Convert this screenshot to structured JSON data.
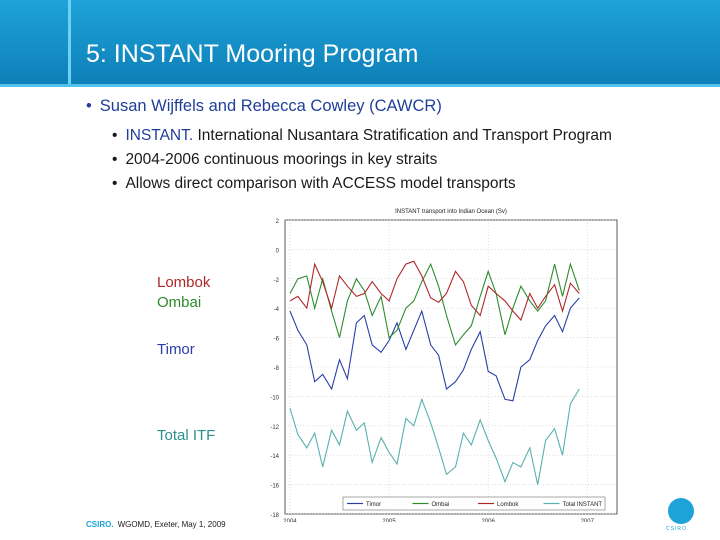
{
  "slide": {
    "title": "5: INSTANT Mooring Program",
    "bullet_main": "Susan Wijffels and Rebecca Cowley (CAWCR)",
    "sub_bullets": [
      {
        "highlight": "INSTANT.",
        "text": " International Nusantara Stratification and Transport Program"
      },
      {
        "highlight": "",
        "text": "2004-2006 continuous moorings in key straits"
      },
      {
        "highlight": "",
        "text": "Allows direct comparison with ACCESS model transports"
      }
    ],
    "side_labels": {
      "lombok": "Lombok",
      "ombai": "Ombai",
      "timor": "Timor",
      "total": "Total ITF"
    },
    "footer": {
      "brand": "CSIRO.",
      "text": "WGOMD, Exeter, May 1, 2009"
    },
    "logo_text": "CSIRO"
  },
  "chart_data": {
    "type": "line",
    "title": "INSTANT transport into Indian Ocean (Sv)",
    "xlabel": "",
    "ylabel": "",
    "xlim": [
      2003.95,
      2007.3
    ],
    "ylim": [
      -18,
      2
    ],
    "x_ticks": [
      2004,
      2005,
      2006,
      2007
    ],
    "y_ticks": [
      2,
      0,
      -2,
      -4,
      -6,
      -8,
      -10,
      -12,
      -14,
      -16,
      -18
    ],
    "grid": true,
    "legend_position": "bottom",
    "series": [
      {
        "name": "Timor",
        "color": "#2a3fa8",
        "x": [
          2004.0,
          2004.08,
          2004.17,
          2004.25,
          2004.33,
          2004.42,
          2004.5,
          2004.58,
          2004.67,
          2004.75,
          2004.83,
          2004.92,
          2005.0,
          2005.08,
          2005.17,
          2005.25,
          2005.33,
          2005.42,
          2005.5,
          2005.58,
          2005.67,
          2005.75,
          2005.83,
          2005.92,
          2006.0,
          2006.08,
          2006.17,
          2006.25,
          2006.33,
          2006.42,
          2006.5,
          2006.58,
          2006.67,
          2006.75,
          2006.83,
          2006.92
        ],
        "values": [
          -4.2,
          -5.5,
          -6.5,
          -9.0,
          -8.5,
          -9.5,
          -7.5,
          -8.8,
          -5.0,
          -4.5,
          -6.5,
          -7.0,
          -6.2,
          -5.0,
          -6.8,
          -5.5,
          -4.2,
          -6.5,
          -7.2,
          -9.5,
          -9.0,
          -8.2,
          -6.8,
          -5.6,
          -8.3,
          -8.6,
          -10.2,
          -10.3,
          -8.0,
          -7.5,
          -6.2,
          -5.2,
          -4.5,
          -5.6,
          -4.0,
          -3.3
        ]
      },
      {
        "name": "Ombai",
        "color": "#2e8b2e",
        "x": [
          2004.0,
          2004.08,
          2004.17,
          2004.25,
          2004.33,
          2004.42,
          2004.5,
          2004.58,
          2004.67,
          2004.75,
          2004.83,
          2004.92,
          2005.0,
          2005.08,
          2005.17,
          2005.25,
          2005.33,
          2005.42,
          2005.5,
          2005.58,
          2005.67,
          2005.75,
          2005.83,
          2005.92,
          2006.0,
          2006.08,
          2006.17,
          2006.25,
          2006.33,
          2006.42,
          2006.5,
          2006.58,
          2006.67,
          2006.75,
          2006.83,
          2006.92
        ],
        "values": [
          -3.0,
          -2.0,
          -1.8,
          -4.0,
          -2.0,
          -4.2,
          -6.0,
          -3.5,
          -2.0,
          -2.8,
          -4.5,
          -3.2,
          -6.0,
          -5.5,
          -4.0,
          -3.5,
          -2.2,
          -1.0,
          -2.5,
          -4.5,
          -6.5,
          -5.8,
          -5.2,
          -3.2,
          -1.5,
          -3.0,
          -5.8,
          -4.0,
          -2.5,
          -3.5,
          -4.2,
          -3.5,
          -1.0,
          -3.2,
          -1.0,
          -2.8
        ]
      },
      {
        "name": "Lombok",
        "color": "#b02828",
        "x": [
          2004.0,
          2004.08,
          2004.17,
          2004.25,
          2004.33,
          2004.42,
          2004.5,
          2004.58,
          2004.67,
          2004.75,
          2004.83,
          2004.92,
          2005.0,
          2005.08,
          2005.17,
          2005.25,
          2005.33,
          2005.42,
          2005.5,
          2005.58,
          2005.67,
          2005.75,
          2005.83,
          2005.92,
          2006.0,
          2006.08,
          2006.17,
          2006.25,
          2006.33,
          2006.42,
          2006.5,
          2006.58,
          2006.67,
          2006.75,
          2006.83,
          2006.92
        ],
        "values": [
          -3.5,
          -3.2,
          -4.0,
          -1.0,
          -2.2,
          -4.0,
          -1.8,
          -2.5,
          -3.2,
          -3.0,
          -2.2,
          -3.0,
          -3.5,
          -2.0,
          -1.0,
          -0.8,
          -1.8,
          -3.3,
          -3.6,
          -3.0,
          -1.5,
          -2.2,
          -3.8,
          -4.5,
          -2.5,
          -3.0,
          -3.5,
          -4.2,
          -4.8,
          -3.0,
          -4.0,
          -3.2,
          -2.4,
          -4.2,
          -2.3,
          -3.0
        ]
      },
      {
        "name": "Total INSTANT",
        "color": "#5ab0b0",
        "x": [
          2004.0,
          2004.08,
          2004.17,
          2004.25,
          2004.33,
          2004.42,
          2004.5,
          2004.58,
          2004.67,
          2004.75,
          2004.83,
          2004.92,
          2005.0,
          2005.08,
          2005.17,
          2005.25,
          2005.33,
          2005.42,
          2005.5,
          2005.58,
          2005.67,
          2005.75,
          2005.83,
          2005.92,
          2006.0,
          2006.08,
          2006.17,
          2006.25,
          2006.33,
          2006.42,
          2006.5,
          2006.58,
          2006.67,
          2006.75,
          2006.83,
          2006.92
        ],
        "values": [
          -10.8,
          -12.6,
          -13.5,
          -12.5,
          -14.8,
          -12.3,
          -13.3,
          -11.0,
          -12.3,
          -11.8,
          -14.5,
          -12.8,
          -13.8,
          -14.6,
          -11.5,
          -12.0,
          -10.2,
          -11.8,
          -13.5,
          -15.3,
          -14.8,
          -12.5,
          -13.3,
          -11.6,
          -13.0,
          -14.2,
          -15.8,
          -14.5,
          -14.8,
          -13.5,
          -16.0,
          -13.0,
          -12.2,
          -14.0,
          -10.5,
          -9.5
        ]
      }
    ]
  }
}
